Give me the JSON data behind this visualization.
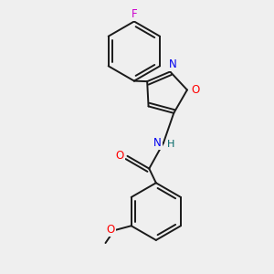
{
  "bg_color": "#efefef",
  "bond_color": "#1a1a1a",
  "bond_width": 1.4,
  "atom_colors": {
    "F": "#cc00cc",
    "O": "#ff0000",
    "N": "#0000ee",
    "H": "#006666",
    "C": "#1a1a1a"
  },
  "font_size": 8.5,
  "fig_size": [
    3.0,
    3.0
  ],
  "dpi": 100
}
